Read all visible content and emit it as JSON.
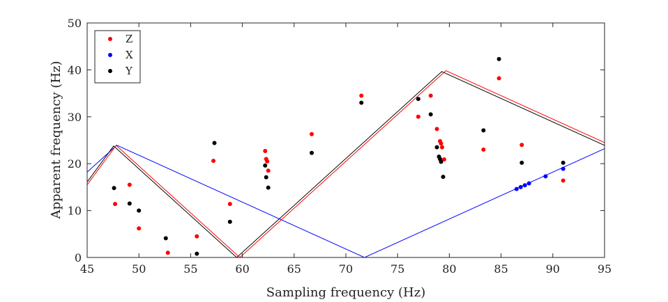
{
  "chart_data": {
    "type": "line",
    "xlabel": "Sampling frequency (Hz)",
    "ylabel": "Apparent frequency (Hz)",
    "xlim": [
      45,
      95
    ],
    "ylim": [
      0,
      50
    ],
    "xticks": [
      45,
      50,
      55,
      60,
      65,
      70,
      75,
      80,
      85,
      90,
      95
    ],
    "yticks": [
      0,
      10,
      20,
      30,
      40,
      50
    ],
    "grid": false,
    "legend": {
      "placement": "top-left",
      "entries": [
        "Z",
        "X",
        "Y"
      ]
    },
    "colors": {
      "Z": "#ff0000",
      "X": "#0000ff",
      "Y": "#000000"
    },
    "lines": [
      {
        "series": "Z",
        "source_frequency": 119.5
      },
      {
        "series": "X",
        "source_frequency": 71.8
      },
      {
        "series": "Y",
        "source_frequency": 118.9
      }
    ],
    "points": {
      "Z": [
        [
          47.7,
          11.4
        ],
        [
          49.1,
          15.5
        ],
        [
          50.0,
          6.2
        ],
        [
          52.8,
          1.0
        ],
        [
          55.6,
          4.5
        ],
        [
          57.2,
          20.6
        ],
        [
          58.8,
          11.4
        ],
        [
          62.2,
          22.7
        ],
        [
          62.3,
          21.0
        ],
        [
          62.4,
          20.5
        ],
        [
          62.5,
          18.5
        ],
        [
          66.7,
          26.3
        ],
        [
          71.5,
          34.5
        ],
        [
          77.0,
          30.0
        ],
        [
          78.2,
          34.5
        ],
        [
          78.8,
          27.4
        ],
        [
          79.1,
          24.8
        ],
        [
          79.2,
          24.3
        ],
        [
          79.3,
          23.5
        ],
        [
          79.5,
          20.9
        ],
        [
          83.3,
          23.0
        ],
        [
          84.8,
          38.2
        ],
        [
          87.0,
          24.0
        ],
        [
          91.0,
          16.4
        ]
      ],
      "X": [
        [
          86.5,
          14.6
        ],
        [
          86.9,
          15.0
        ],
        [
          87.3,
          15.4
        ],
        [
          87.7,
          15.8
        ],
        [
          89.3,
          17.3
        ],
        [
          91.0,
          18.9
        ]
      ],
      "Y": [
        [
          47.6,
          14.8
        ],
        [
          49.1,
          11.5
        ],
        [
          50.0,
          10.0
        ],
        [
          52.6,
          4.1
        ],
        [
          55.6,
          0.8
        ],
        [
          57.3,
          24.4
        ],
        [
          58.8,
          7.6
        ],
        [
          62.2,
          19.6
        ],
        [
          62.3,
          17.1
        ],
        [
          62.5,
          14.9
        ],
        [
          66.7,
          22.3
        ],
        [
          71.5,
          33.0
        ],
        [
          77.0,
          33.8
        ],
        [
          78.2,
          30.5
        ],
        [
          78.8,
          23.5
        ],
        [
          79.0,
          21.5
        ],
        [
          79.1,
          21.0
        ],
        [
          79.2,
          20.4
        ],
        [
          79.4,
          17.2
        ],
        [
          83.3,
          27.1
        ],
        [
          84.8,
          42.3
        ],
        [
          87.0,
          20.2
        ],
        [
          91.0,
          20.2
        ]
      ]
    }
  }
}
